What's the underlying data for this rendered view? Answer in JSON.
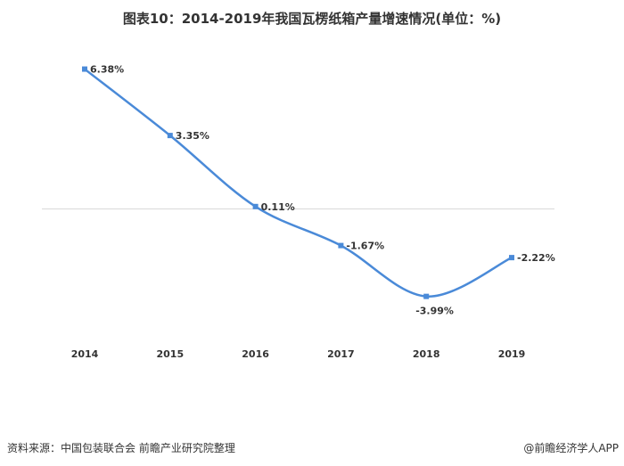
{
  "chart_data": {
    "type": "line",
    "title": "图表10：2014-2019年我国瓦楞纸箱产量增速情况(单位：%)",
    "categories": [
      "2014",
      "2015",
      "2016",
      "2017",
      "2018",
      "2019"
    ],
    "series": [
      {
        "name": "瓦楞纸箱产量增速",
        "values": [
          6.38,
          3.35,
          0.11,
          -1.67,
          -3.99,
          -2.22
        ]
      }
    ],
    "data_labels": [
      "6.38%",
      "3.35%",
      "0.11%",
      "-1.67%",
      "-3.99%",
      "-2.22%"
    ],
    "xlabel": "",
    "ylabel": "",
    "ylim": [
      -6,
      7
    ],
    "grid": false,
    "line_color": "#4a8ad8",
    "smooth": true
  },
  "footer": {
    "source": "资料来源：中国包装联合会 前瞻产业研究院整理",
    "credit": "@前瞻经济学人APP"
  }
}
